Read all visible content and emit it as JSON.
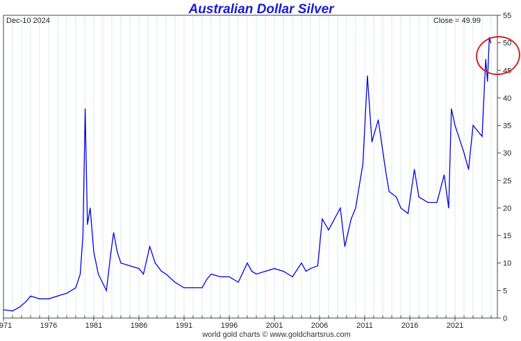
{
  "chart_data": {
    "type": "line",
    "title": "Australian Dollar Silver",
    "date_label": "Dec-10  2024",
    "close_label": "Close = 49.99",
    "footer": "world gold charts © www.goldchartsrus.com",
    "xlabel": "",
    "ylabel": "",
    "xlim": [
      1971,
      2026
    ],
    "ylim": [
      0,
      55
    ],
    "x_ticks": [
      "1971",
      "1976",
      "1981",
      "1986",
      "1991",
      "1996",
      "2001",
      "2006",
      "2011",
      "2016",
      "2021"
    ],
    "y_ticks": [
      0,
      5,
      10,
      15,
      20,
      25,
      30,
      35,
      40,
      45,
      50,
      55
    ],
    "grid": "vertical",
    "y_axis_side": "right",
    "line_color": "#0000e0",
    "annotation": {
      "shape": "ellipse",
      "color": "#d42020",
      "around": "2024 peak"
    },
    "series": [
      {
        "x": [
          1971,
          1971.5,
          1972,
          1972.8,
          1973.5,
          1974,
          1975,
          1976,
          1977,
          1978,
          1979,
          1979.5,
          1979.8,
          1980.05,
          1980.3,
          1980.6,
          1981,
          1981.5,
          1982.4,
          1982.9,
          1983.2,
          1983.6,
          1984,
          1985,
          1986,
          1986.5,
          1987.2,
          1987.8,
          1988.5,
          1989,
          1990,
          1991,
          1992,
          1993,
          1993.5,
          1994,
          1995,
          1996,
          1997,
          1998,
          1998.5,
          1999,
          2000,
          2001,
          2002,
          2003,
          2004,
          2004.5,
          2005,
          2005.8,
          2006.3,
          2007,
          2008.3,
          2008.8,
          2009.5,
          2010,
          2010.8,
          2011.3,
          2011.8,
          2012.5,
          2013.3,
          2013.7,
          2014.5,
          2015,
          2015.8,
          2016.5,
          2017,
          2018,
          2019,
          2019.8,
          2020.3,
          2020.6,
          2021,
          2022,
          2022.5,
          2023,
          2023.5,
          2024,
          2024.4,
          2024.6,
          2024.8,
          2024.95
        ],
        "y": [
          1.5,
          1.4,
          1.3,
          2,
          3,
          4,
          3.5,
          3.5,
          4,
          4.5,
          5.5,
          8,
          15,
          38,
          17,
          20,
          12,
          8,
          5,
          12,
          15.5,
          12,
          10,
          9.5,
          9,
          8,
          13,
          10,
          8.5,
          8,
          6.5,
          5.5,
          5.5,
          5.5,
          7,
          8,
          7.5,
          7.5,
          6.5,
          10,
          8.5,
          8,
          8.5,
          9,
          8.5,
          7.5,
          10,
          8.5,
          9,
          9.5,
          18,
          16,
          20,
          13,
          18,
          20,
          28,
          44,
          32,
          36,
          27,
          23,
          22,
          20,
          19,
          27,
          22,
          21,
          21,
          26,
          20,
          38,
          35,
          30,
          27,
          35,
          34,
          33,
          47,
          43,
          51,
          49.99
        ]
      }
    ]
  }
}
